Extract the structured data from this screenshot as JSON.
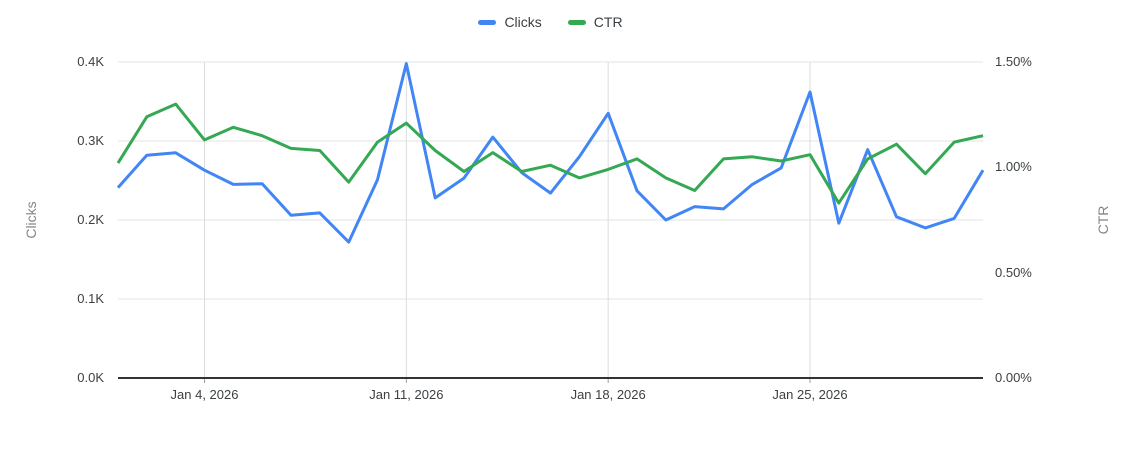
{
  "legend": {
    "items": [
      {
        "label": "Clicks",
        "color": "#4285f4"
      },
      {
        "label": "CTR",
        "color": "#34a853"
      }
    ]
  },
  "left_axis": {
    "title": "Clicks",
    "tick_labels": [
      "0.0K",
      "0.1K",
      "0.2K",
      "0.3K",
      "0.4K"
    ]
  },
  "right_axis": {
    "title": "CTR",
    "tick_labels": [
      "0.00%",
      "0.50%",
      "1.00%",
      "1.50%"
    ]
  },
  "x_axis": {
    "tick_labels": [
      "Jan 4, 2026",
      "Jan 11, 2026",
      "Jan 18, 2026",
      "Jan 25, 2026"
    ],
    "tick_day_indices": [
      3,
      10,
      17,
      24
    ]
  },
  "chart_data": {
    "type": "line",
    "title": "",
    "grid": true,
    "legend_position": "top-center",
    "x": [
      "Jan 1, 2026",
      "Jan 2, 2026",
      "Jan 3, 2026",
      "Jan 4, 2026",
      "Jan 5, 2026",
      "Jan 6, 2026",
      "Jan 7, 2026",
      "Jan 8, 2026",
      "Jan 9, 2026",
      "Jan 10, 2026",
      "Jan 11, 2026",
      "Jan 12, 2026",
      "Jan 13, 2026",
      "Jan 14, 2026",
      "Jan 15, 2026",
      "Jan 16, 2026",
      "Jan 17, 2026",
      "Jan 18, 2026",
      "Jan 19, 2026",
      "Jan 20, 2026",
      "Jan 21, 2026",
      "Jan 22, 2026",
      "Jan 23, 2026",
      "Jan 24, 2026",
      "Jan 25, 2026",
      "Jan 26, 2026",
      "Jan 27, 2026",
      "Jan 28, 2026",
      "Jan 29, 2026",
      "Jan 30, 2026",
      "Jan 31, 2026"
    ],
    "left_axis_range": [
      0,
      400
    ],
    "right_axis_range": [
      0,
      1.5
    ],
    "series": [
      {
        "name": "Clicks",
        "axis": "left",
        "unit": "clicks",
        "color": "#4285f4",
        "values": [
          241,
          282,
          285,
          263,
          245,
          246,
          206,
          209,
          172,
          251,
          398,
          228,
          253,
          305,
          260,
          234,
          280,
          335,
          237,
          200,
          217,
          214,
          245,
          266,
          362,
          196,
          289,
          204,
          190,
          202,
          263
        ]
      },
      {
        "name": "CTR",
        "axis": "right",
        "unit": "percent",
        "color": "#34a853",
        "values": [
          1.02,
          1.24,
          1.3,
          1.13,
          1.19,
          1.15,
          1.09,
          1.08,
          0.93,
          1.12,
          1.21,
          1.08,
          0.98,
          1.07,
          0.98,
          1.01,
          0.95,
          0.99,
          1.04,
          0.95,
          0.89,
          1.04,
          1.05,
          1.03,
          1.06,
          0.83,
          1.04,
          1.11,
          0.97,
          1.12,
          1.15
        ]
      }
    ]
  }
}
